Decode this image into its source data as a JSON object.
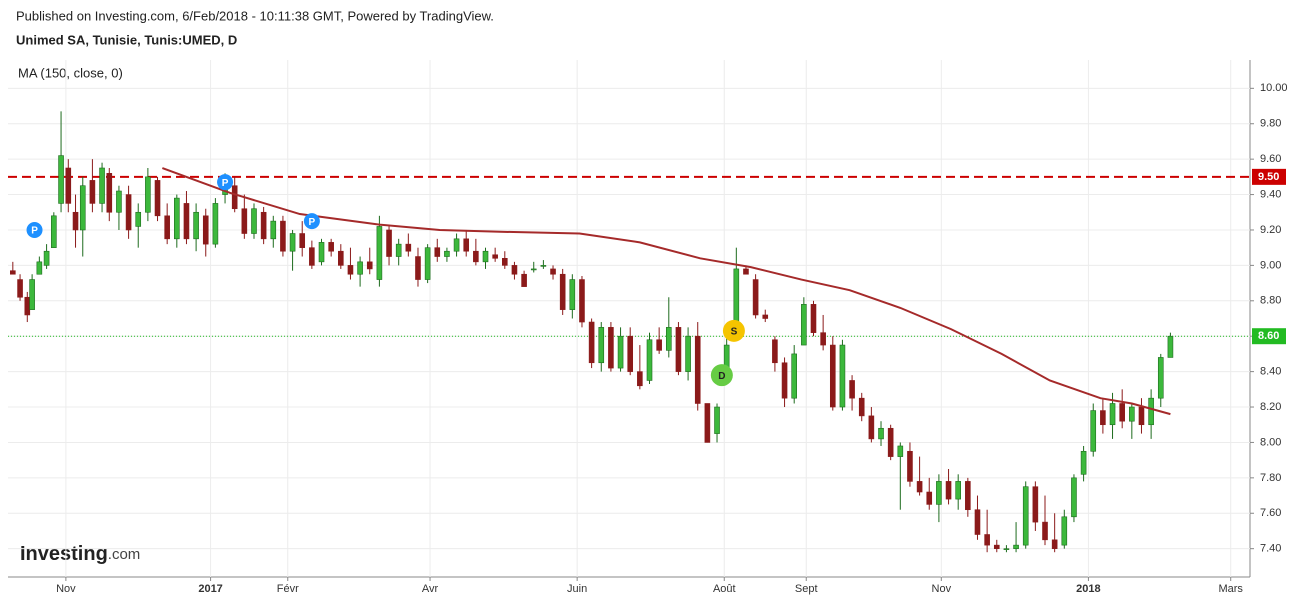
{
  "header": {
    "published": "Published on Investing.com, 6/Feb/2018 - 10:11:38 GMT, Powered by TradingView.",
    "symbol": "Unimed SA, Tunisie, Tunis:UMED, D"
  },
  "logo": {
    "name": "Investing",
    "suffix": ".com"
  },
  "chart_data": {
    "type": "candlestick",
    "indicator_label": "MA (150, close, 0)",
    "up_color": "#3cb83c",
    "down_color": "#8b1a1a",
    "xlim": [
      0,
      515
    ],
    "ylim": [
      7.24,
      10.16
    ],
    "grid": true,
    "xticks": [
      {
        "value": 24,
        "label": "Nov"
      },
      {
        "value": 84,
        "label": "2017",
        "bold": true
      },
      {
        "value": 116,
        "label": "Févr"
      },
      {
        "value": 175,
        "label": "Avr"
      },
      {
        "value": 236,
        "label": "Juin"
      },
      {
        "value": 297,
        "label": "Août"
      },
      {
        "value": 331,
        "label": "Sept"
      },
      {
        "value": 387,
        "label": "Nov"
      },
      {
        "value": 448,
        "label": "2018",
        "bold": true
      },
      {
        "value": 507,
        "label": "Mars"
      }
    ],
    "yticks": [
      {
        "value": 7.4,
        "label": "7.40"
      },
      {
        "value": 7.6,
        "label": "7.60"
      },
      {
        "value": 7.8,
        "label": "7.80"
      },
      {
        "value": 8,
        "label": "8.00"
      },
      {
        "value": 8.2,
        "label": "8.20"
      },
      {
        "value": 8.4,
        "label": "8.40"
      },
      {
        "value": 8.6,
        "label": "8.60"
      },
      {
        "value": 8.8,
        "label": "8.80"
      },
      {
        "value": 9,
        "label": "9.00"
      },
      {
        "value": 9.2,
        "label": "9.20"
      },
      {
        "value": 9.4,
        "label": "9.40"
      },
      {
        "value": 9.6,
        "label": "9.60"
      },
      {
        "value": 9.8,
        "label": "9.80"
      },
      {
        "value": 10,
        "label": "10.00"
      }
    ],
    "x": [
      2,
      5,
      8,
      10,
      13,
      16,
      19,
      22,
      25,
      28,
      31,
      35,
      39,
      42,
      46,
      50,
      54,
      58,
      62,
      66,
      70,
      74,
      78,
      82,
      86,
      90,
      94,
      98,
      102,
      106,
      110,
      114,
      118,
      122,
      126,
      130,
      134,
      138,
      142,
      146,
      150,
      154,
      158,
      162,
      166,
      170,
      174,
      178,
      182,
      186,
      190,
      194,
      198,
      202,
      206,
      210,
      214,
      218,
      222,
      226,
      230,
      234,
      238,
      242,
      246,
      250,
      254,
      258,
      262,
      266,
      270,
      274,
      278,
      282,
      286,
      290,
      294,
      298,
      302,
      306,
      310,
      314,
      318,
      322,
      326,
      330,
      334,
      338,
      342,
      346,
      350,
      354,
      358,
      362,
      366,
      370,
      374,
      378,
      382,
      386,
      390,
      394,
      398,
      402,
      406,
      410,
      414,
      418,
      422,
      426,
      430,
      434,
      438,
      442,
      446,
      450,
      454,
      458,
      462,
      466,
      470,
      474,
      478,
      482
    ],
    "ohlc": [
      [
        8.97,
        9.02,
        8.95,
        8.95
      ],
      [
        8.92,
        8.95,
        8.8,
        8.82
      ],
      [
        8.82,
        8.85,
        8.68,
        8.72
      ],
      [
        8.75,
        8.95,
        8.75,
        8.92
      ],
      [
        8.95,
        9.05,
        8.95,
        9.02
      ],
      [
        9.0,
        9.12,
        8.98,
        9.08
      ],
      [
        9.1,
        9.3,
        9.1,
        9.28
      ],
      [
        9.35,
        9.87,
        9.3,
        9.62
      ],
      [
        9.55,
        9.6,
        9.3,
        9.35
      ],
      [
        9.3,
        9.4,
        9.1,
        9.2
      ],
      [
        9.2,
        9.5,
        9.05,
        9.45
      ],
      [
        9.48,
        9.6,
        9.3,
        9.35
      ],
      [
        9.35,
        9.58,
        9.3,
        9.55
      ],
      [
        9.52,
        9.55,
        9.25,
        9.3
      ],
      [
        9.3,
        9.45,
        9.2,
        9.42
      ],
      [
        9.4,
        9.45,
        9.15,
        9.2
      ],
      [
        9.22,
        9.35,
        9.1,
        9.3
      ],
      [
        9.3,
        9.55,
        9.25,
        9.5
      ],
      [
        9.48,
        9.5,
        9.25,
        9.28
      ],
      [
        9.28,
        9.35,
        9.12,
        9.15
      ],
      [
        9.15,
        9.4,
        9.1,
        9.38
      ],
      [
        9.35,
        9.42,
        9.12,
        9.15
      ],
      [
        9.15,
        9.35,
        9.08,
        9.3
      ],
      [
        9.28,
        9.32,
        9.05,
        9.12
      ],
      [
        9.12,
        9.38,
        9.1,
        9.35
      ],
      [
        9.4,
        9.52,
        9.35,
        9.45
      ],
      [
        9.45,
        9.5,
        9.3,
        9.32
      ],
      [
        9.32,
        9.4,
        9.15,
        9.18
      ],
      [
        9.18,
        9.35,
        9.15,
        9.32
      ],
      [
        9.3,
        9.33,
        9.12,
        9.15
      ],
      [
        9.15,
        9.28,
        9.1,
        9.25
      ],
      [
        9.25,
        9.28,
        9.05,
        9.08
      ],
      [
        9.08,
        9.2,
        8.97,
        9.18
      ],
      [
        9.18,
        9.25,
        9.05,
        9.1
      ],
      [
        9.1,
        9.14,
        8.98,
        9.0
      ],
      [
        9.02,
        9.15,
        9.0,
        9.13
      ],
      [
        9.13,
        9.15,
        9.05,
        9.08
      ],
      [
        9.08,
        9.12,
        8.98,
        9.0
      ],
      [
        9.0,
        9.1,
        8.92,
        8.95
      ],
      [
        8.95,
        9.05,
        8.88,
        9.02
      ],
      [
        9.02,
        9.1,
        8.95,
        8.98
      ],
      [
        8.92,
        9.28,
        8.88,
        9.22
      ],
      [
        9.2,
        9.22,
        9.0,
        9.05
      ],
      [
        9.05,
        9.15,
        9.0,
        9.12
      ],
      [
        9.12,
        9.18,
        9.05,
        9.08
      ],
      [
        9.05,
        9.1,
        8.88,
        8.92
      ],
      [
        8.92,
        9.12,
        8.9,
        9.1
      ],
      [
        9.1,
        9.15,
        9.02,
        9.05
      ],
      [
        9.05,
        9.1,
        9.02,
        9.08
      ],
      [
        9.08,
        9.18,
        9.05,
        9.15
      ],
      [
        9.15,
        9.2,
        9.05,
        9.08
      ],
      [
        9.08,
        9.15,
        9.0,
        9.02
      ],
      [
        9.02,
        9.1,
        8.98,
        9.08
      ],
      [
        9.06,
        9.1,
        9.02,
        9.04
      ],
      [
        9.04,
        9.08,
        8.98,
        9.0
      ],
      [
        9.0,
        9.02,
        8.92,
        8.95
      ],
      [
        8.95,
        8.97,
        8.88,
        8.88
      ],
      [
        8.98,
        9.02,
        8.96,
        8.98
      ],
      [
        9.0,
        9.03,
        8.98,
        9.0
      ],
      [
        8.98,
        9.0,
        8.92,
        8.95
      ],
      [
        8.95,
        8.98,
        8.72,
        8.75
      ],
      [
        8.75,
        8.95,
        8.7,
        8.92
      ],
      [
        8.92,
        8.94,
        8.65,
        8.68
      ],
      [
        8.68,
        8.7,
        8.42,
        8.45
      ],
      [
        8.45,
        8.68,
        8.4,
        8.65
      ],
      [
        8.65,
        8.68,
        8.4,
        8.42
      ],
      [
        8.42,
        8.65,
        8.4,
        8.6
      ],
      [
        8.6,
        8.65,
        8.38,
        8.4
      ],
      [
        8.4,
        8.55,
        8.3,
        8.32
      ],
      [
        8.35,
        8.62,
        8.33,
        8.58
      ],
      [
        8.58,
        8.65,
        8.5,
        8.52
      ],
      [
        8.52,
        8.82,
        8.48,
        8.65
      ],
      [
        8.65,
        8.68,
        8.38,
        8.4
      ],
      [
        8.4,
        8.65,
        8.35,
        8.6
      ],
      [
        8.6,
        8.68,
        8.18,
        8.22
      ],
      [
        8.22,
        8.22,
        8.0,
        8.0
      ],
      [
        8.05,
        8.22,
        8.0,
        8.2
      ],
      [
        8.4,
        8.62,
        8.4,
        8.55
      ],
      [
        8.62,
        9.1,
        8.58,
        8.98
      ],
      [
        8.98,
        9.0,
        8.95,
        8.95
      ],
      [
        8.92,
        8.95,
        8.7,
        8.72
      ],
      [
        8.72,
        8.75,
        8.68,
        8.7
      ],
      [
        8.58,
        8.6,
        8.4,
        8.45
      ],
      [
        8.45,
        8.48,
        8.2,
        8.25
      ],
      [
        8.25,
        8.55,
        8.22,
        8.5
      ],
      [
        8.55,
        8.82,
        8.55,
        8.78
      ],
      [
        8.78,
        8.8,
        8.6,
        8.62
      ],
      [
        8.62,
        8.72,
        8.52,
        8.55
      ],
      [
        8.55,
        8.6,
        8.18,
        8.2
      ],
      [
        8.2,
        8.58,
        8.18,
        8.55
      ],
      [
        8.35,
        8.38,
        8.18,
        8.25
      ],
      [
        8.25,
        8.28,
        8.12,
        8.15
      ],
      [
        8.15,
        8.2,
        8.0,
        8.02
      ],
      [
        8.02,
        8.12,
        7.98,
        8.08
      ],
      [
        8.08,
        8.1,
        7.9,
        7.92
      ],
      [
        7.92,
        8.0,
        7.62,
        7.98
      ],
      [
        7.95,
        8.0,
        7.75,
        7.78
      ],
      [
        7.78,
        7.92,
        7.7,
        7.72
      ],
      [
        7.72,
        7.8,
        7.62,
        7.65
      ],
      [
        7.65,
        7.82,
        7.55,
        7.78
      ],
      [
        7.78,
        7.85,
        7.65,
        7.68
      ],
      [
        7.68,
        7.82,
        7.62,
        7.78
      ],
      [
        7.78,
        7.8,
        7.58,
        7.62
      ],
      [
        7.62,
        7.7,
        7.45,
        7.48
      ],
      [
        7.48,
        7.62,
        7.38,
        7.42
      ],
      [
        7.42,
        7.45,
        7.38,
        7.4
      ],
      [
        7.4,
        7.42,
        7.38,
        7.4
      ],
      [
        7.4,
        7.55,
        7.38,
        7.42
      ],
      [
        7.42,
        7.78,
        7.4,
        7.75
      ],
      [
        7.75,
        7.78,
        7.5,
        7.55
      ],
      [
        7.55,
        7.7,
        7.42,
        7.45
      ],
      [
        7.45,
        7.6,
        7.38,
        7.4
      ],
      [
        7.42,
        7.62,
        7.4,
        7.58
      ],
      [
        7.58,
        7.82,
        7.55,
        7.8
      ],
      [
        7.82,
        7.98,
        7.78,
        7.95
      ],
      [
        7.95,
        8.22,
        7.92,
        8.18
      ],
      [
        8.18,
        8.25,
        8.05,
        8.1
      ],
      [
        8.1,
        8.28,
        8.02,
        8.22
      ],
      [
        8.22,
        8.3,
        8.08,
        8.12
      ],
      [
        8.12,
        8.22,
        8.02,
        8.2
      ],
      [
        8.2,
        8.25,
        8.05,
        8.1
      ],
      [
        8.1,
        8.3,
        8.02,
        8.25
      ],
      [
        8.25,
        8.5,
        8.2,
        8.48
      ],
      [
        8.48,
        8.62,
        8.48,
        8.6
      ]
    ],
    "ma": {
      "color": "#a52a2a",
      "x": [
        64,
        92,
        121,
        154,
        179,
        204,
        237,
        262,
        287,
        308,
        329,
        349,
        370,
        391,
        412,
        432,
        453,
        466,
        482
      ],
      "values": [
        9.55,
        9.41,
        9.29,
        9.23,
        9.2,
        9.19,
        9.18,
        9.13,
        9.04,
        8.99,
        8.92,
        8.86,
        8.76,
        8.64,
        8.5,
        8.35,
        8.25,
        8.22,
        8.16
      ]
    },
    "levels": [
      {
        "value": 9.5,
        "label": "9.50",
        "color": "#cc0000",
        "style": "dashed"
      },
      {
        "value": 8.6,
        "label": "8.60",
        "color": "#22bb22",
        "style": "dotted"
      }
    ],
    "events": [
      {
        "label": "P",
        "x": 11,
        "y": 9.2,
        "color": "#1e90ff"
      },
      {
        "label": "P",
        "x": 90,
        "y": 9.47,
        "color": "#1e90ff"
      },
      {
        "label": "P",
        "x": 126,
        "y": 9.25,
        "color": "#1e90ff"
      },
      {
        "label": "S",
        "x": 301,
        "y": 8.63,
        "color": "#f5c400"
      },
      {
        "label": "D",
        "x": 296,
        "y": 8.38,
        "color": "#66cc44"
      }
    ]
  }
}
